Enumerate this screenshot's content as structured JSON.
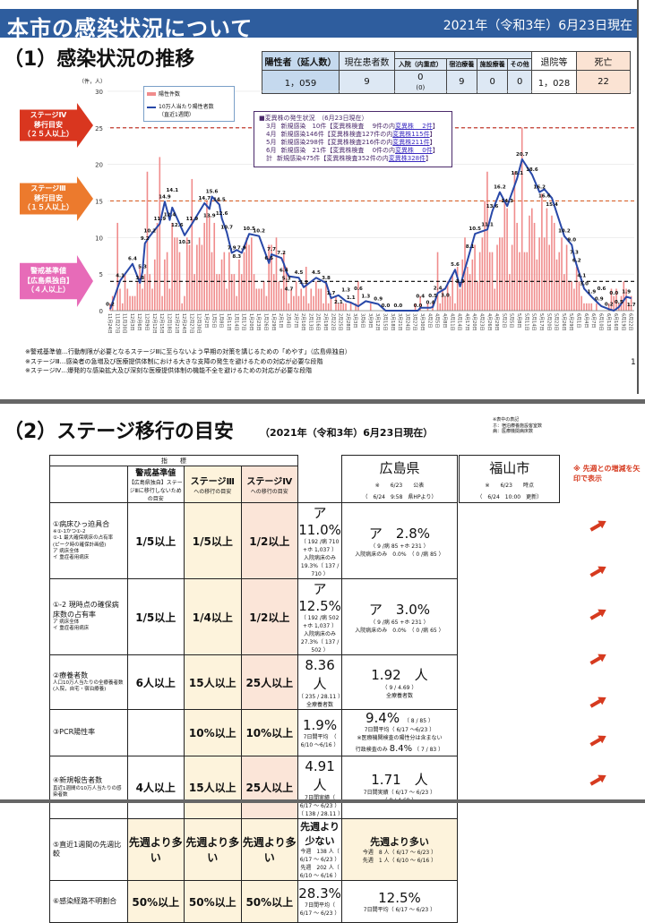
{
  "header": {
    "title": "本市の感染状況について",
    "date": "2021年（令和3年）6月23日現在"
  },
  "section1": {
    "title": "（1）感染状況の推移"
  },
  "summary": {
    "headers": {
      "positive": "陽性者（延人数）",
      "current": "現在患者数",
      "hospital": "入院（内重症）",
      "hotel": "宿泊療養",
      "facility": "施設療養",
      "other": "その他",
      "discharged": "退院等",
      "deaths": "死亡"
    },
    "values": {
      "positive": "1，059",
      "current": "9",
      "hospital": "0",
      "hospital_severe": "(0)",
      "hotel": "9",
      "facility": "0",
      "other": "0",
      "discharged": "1，028",
      "deaths": "22"
    }
  },
  "stages": {
    "s4": [
      "ステージⅣ",
      "移行目安",
      "（２５人以上）"
    ],
    "s3": [
      "ステージⅢ",
      "移行目安",
      "（１５人以上）"
    ],
    "alert": [
      "警戒基準値",
      "【広島県独自】",
      "（４人以上）"
    ]
  },
  "legend": {
    "unit": "（件，人）",
    "bars": "陽性件数",
    "line": "10万人当たり陽性者数",
    "line_sub": "（直近1週間）"
  },
  "variant": {
    "title": "■変異株の発生状況　（6月23日現在）",
    "rows": [
      [
        "3月",
        "新規感染　10件【変異株検査　 9件の内",
        "変異株　 2件",
        "】"
      ],
      [
        "4月",
        "新規感染146件【変異株検査127件の内",
        "変異株115件",
        "】"
      ],
      [
        "5月",
        "新規感染298件【変異株検査216件の内",
        "変異株211件",
        "】"
      ],
      [
        "6月",
        "新規感染　21件【変異株検査　 0件の内",
        "変異株　 0件",
        "】"
      ],
      [
        "計",
        "新規感染475件【変異株検査352件の内",
        "変異株328件",
        "】"
      ]
    ]
  },
  "chart_data": {
    "type": "bar+line",
    "ylabel": "（件，人）",
    "ylim": [
      0,
      30
    ],
    "yticks": [
      0,
      5,
      10,
      15,
      20,
      25,
      30
    ],
    "thresholds": [
      {
        "value": 25,
        "color": "#c0392b"
      },
      {
        "value": 15,
        "color": "#d9622b"
      },
      {
        "value": 4,
        "color": "#000000"
      }
    ],
    "colors": {
      "bar": "#f08c8c",
      "line": "#2848a8"
    },
    "xtick_labels": [
      "11月24日",
      "11月27日",
      "11月30日",
      "12月3日",
      "12月6日",
      "12月9日",
      "12月12日",
      "12月15日",
      "12月18日",
      "12月21日",
      "12月24日",
      "12月27日",
      "12月30日",
      "1月2日",
      "1月5日",
      "1月8日",
      "1月11日",
      "1月14日",
      "1月17日",
      "1月20日",
      "1月23日",
      "1月26日",
      "1月29日",
      "2月1日",
      "2月4日",
      "2月7日",
      "2月10日",
      "2月13日",
      "2月16日",
      "2月19日",
      "2月22日",
      "2月25日",
      "2月28日",
      "3月3日",
      "3月6日",
      "3月9日",
      "3月12日",
      "3月15日",
      "3月18日",
      "3月21日",
      "3月24日",
      "3月27日",
      "3月30日",
      "4月2日",
      "4月5日",
      "4月8日",
      "4月11日",
      "4月14日",
      "4月17日",
      "4月20日",
      "4月23日",
      "4月26日",
      "4月29日",
      "5月2日",
      "5月5日",
      "5月8日",
      "5月11日",
      "5月14日",
      "5月17日",
      "5月20日",
      "5月23日",
      "5月26日",
      "5月29日",
      "6月1日",
      "6月4日",
      "6月7日",
      "6月10日",
      "6月13日",
      "6月16日",
      "6月19日",
      "6月22日"
    ],
    "daily_cases": [
      1,
      2,
      0,
      12,
      3,
      1,
      5,
      3,
      2,
      2,
      2,
      4,
      6,
      3,
      5,
      19,
      5,
      3,
      7,
      12,
      21,
      2,
      7,
      8,
      3,
      12,
      10,
      10,
      8,
      1,
      2,
      10,
      9,
      18,
      5,
      9,
      10,
      9,
      12,
      15,
      13,
      8,
      12,
      5,
      5,
      7,
      8,
      3,
      8,
      5,
      5,
      2,
      7,
      5,
      8,
      10,
      9,
      10,
      5,
      3,
      3,
      3,
      4,
      2,
      9,
      9,
      5,
      10,
      4,
      3,
      8,
      6,
      1,
      3,
      2,
      4,
      2,
      3,
      2,
      6,
      1,
      3,
      2,
      4,
      3,
      3,
      1,
      4,
      1,
      2,
      0,
      2,
      1,
      1,
      1,
      1,
      0,
      1,
      0,
      1,
      4,
      0,
      0,
      0,
      0,
      1,
      0,
      0,
      0,
      0,
      0,
      0,
      0,
      0,
      0,
      0,
      0,
      0,
      0,
      0,
      0,
      0,
      0,
      1,
      0,
      2,
      0,
      0,
      1,
      0,
      1,
      0,
      8,
      1,
      3,
      2,
      4,
      2,
      5,
      1,
      6,
      3,
      7,
      10,
      6,
      5,
      7,
      9,
      4,
      8,
      10,
      15,
      19,
      8,
      8,
      3,
      9,
      10,
      10,
      15,
      14,
      5,
      9,
      19,
      12,
      8,
      25,
      8,
      8,
      13,
      14,
      12,
      7,
      10,
      16,
      10,
      14,
      9,
      13,
      12,
      7,
      8,
      10,
      5,
      9,
      4,
      4,
      3,
      6,
      4,
      2,
      1,
      1,
      1,
      1,
      0,
      1,
      0,
      0,
      0,
      0,
      1,
      3,
      2,
      3,
      1,
      2,
      4,
      3,
      1,
      2
    ],
    "per100k_line": [
      [
        0,
        0.2
      ],
      [
        4,
        4.1
      ],
      [
        9,
        6.4
      ],
      [
        12,
        3.8
      ],
      [
        13,
        5.3
      ],
      [
        14,
        9.2
      ],
      [
        16,
        10.2
      ],
      [
        20,
        11.9
      ],
      [
        22,
        14.9
      ],
      [
        24,
        12.4
      ],
      [
        25,
        14.1
      ],
      [
        27,
        12.6
      ],
      [
        30,
        10.3
      ],
      [
        33,
        11.9
      ],
      [
        38,
        14.7
      ],
      [
        40,
        13.9
      ],
      [
        41,
        15.6
      ],
      [
        44,
        14.5
      ],
      [
        45,
        12.6
      ],
      [
        47,
        10.7
      ],
      [
        49,
        7.9
      ],
      [
        51,
        8.3
      ],
      [
        53,
        7.9
      ],
      [
        56,
        10.5
      ],
      [
        60,
        10.2
      ],
      [
        64,
        6.5
      ],
      [
        65,
        7.7
      ],
      [
        69,
        7.2
      ],
      [
        70,
        6.4
      ],
      [
        71,
        5.3
      ],
      [
        72,
        4.7
      ],
      [
        76,
        4.5
      ],
      [
        78,
        3.2
      ],
      [
        83,
        4.5
      ],
      [
        87,
        3.8
      ],
      [
        89,
        1.7
      ],
      [
        92,
        2.1
      ],
      [
        95,
        1.3
      ],
      [
        97,
        1.1
      ],
      [
        100,
        0.6
      ],
      [
        103,
        1.3
      ],
      [
        108,
        0.9
      ],
      [
        111,
        0.0
      ],
      [
        116,
        0.0
      ],
      [
        124,
        0.0
      ],
      [
        125,
        0.4
      ],
      [
        129,
        0.4
      ],
      [
        130,
        0.5
      ],
      [
        132,
        2.4
      ],
      [
        135,
        3.0
      ],
      [
        139,
        5.6
      ],
      [
        141,
        3.3
      ],
      [
        145,
        8.1
      ],
      [
        147,
        10.5
      ],
      [
        152,
        11.1
      ],
      [
        154,
        13.6
      ],
      [
        157,
        16.2
      ],
      [
        160,
        14.3
      ],
      [
        164,
        18.1
      ],
      [
        166,
        20.7
      ],
      [
        170,
        18.6
      ],
      [
        173,
        16.2
      ],
      [
        175,
        16.6
      ],
      [
        178,
        15.4
      ],
      [
        183,
        10.2
      ],
      [
        186,
        9.0
      ],
      [
        187,
        7.3
      ],
      [
        188,
        6.2
      ],
      [
        190,
        4.1
      ],
      [
        191,
        3.0
      ],
      [
        194,
        1.9
      ],
      [
        197,
        0.9
      ],
      [
        198,
        0.6
      ],
      [
        201,
        0.2
      ],
      [
        203,
        0.0
      ],
      [
        205,
        0.5
      ],
      [
        208,
        1.9
      ],
      [
        210,
        1.7
      ]
    ]
  },
  "notes": [
    "※警戒基準値…行動制限が必要となるステージⅢに至らないよう早期の対策を講じるための「めやす」（広島県独自）",
    "※ステージⅢ…感染者の急増及び医療提供体制における大きな支障の発生を避けるための対応が必要な段階",
    "※ステージⅣ…爆発的な感染拡大及び深刻な医療提供体制の機能不全を避けるための対応が必要な段階"
  ],
  "page_number": "1",
  "section2": {
    "title": "（2）ステージ移行の目安",
    "date": "（2021年（令和3年）6月23日現在）",
    "legend_note": [
      "※表中の表記",
      "ホ：宿泊療養施設客室数",
      "病：医療機関病床数"
    ],
    "side_note": "※ 先週との増減を矢印で表示"
  },
  "table": {
    "indicator_header": "指　　標",
    "col_alert": {
      "title": "警戒基準値",
      "sub": "【広島県独自】ステージⅢに移行しないための目安"
    },
    "col_s3": {
      "title": "ステージⅢ",
      "sub": "への移行の目安"
    },
    "col_s4": {
      "title": "ステージⅣ",
      "sub": "への移行の目安"
    },
    "hiroshima": {
      "title": "広島県",
      "sub1": "※　　6/23　　公表",
      "sub2": "（　6/24　9:58　県HPより）"
    },
    "fukuyama": {
      "title": "福山市",
      "sub1": "※　　6/23　　時点",
      "sub2": "（　6/24　10:00　更新）"
    },
    "rows": [
      {
        "label": "①病床ひっ迫具合",
        "label_sub": "※①-1かつ①-2\n①-1 最大確保病床の占有率\n(ピーク時の確保計画値)\nア 病床全体\nイ 重症者用病床",
        "alert": "1/5以上",
        "s3": "1/5以上",
        "s4": "1/2以上",
        "hiro": {
          "main": "ア　11.0%",
          "l1": "（ 192 /病 710 +ホ 1,037 ）",
          "l2": "入院病床のみ 19.3%（ 137 / 710 ）"
        },
        "fuku": {
          "main": "ア　2.8%",
          "l1": "（ 9 /病 85 +ホ 231 ）",
          "l2": "入院病床のみ　0.0%　（ 0 /病 85 ）"
        }
      },
      {
        "label": "①-2 現時点の確保病床数の占有率",
        "label_sub": "ア 病床全体\nイ 重症者用病床",
        "alert": "1/5以上",
        "s3": "1/4以上",
        "s4": "1/2以上",
        "hiro": {
          "main": "ア　12.5%",
          "l1": "（ 192 /病 502 +ホ 1,037 ）",
          "l2": "入院病床のみ 27.3%（ 137 / 502 ）"
        },
        "fuku": {
          "main": "ア　3.0%",
          "l1": "（ 9 /病 65 +ホ 231 ）",
          "l2": "入院病床のみ　0.0%　（ 0 /病 65 ）"
        }
      },
      {
        "label": "②療養者数",
        "label_sub": "人口10万人当たりの全療養者数(入院，自宅・宿泊療養)",
        "alert": "6人以上",
        "s3": "15人以上",
        "s4": "25人以上",
        "hiro": {
          "main": "8.36　人",
          "l1": "（ 235 / 28.11 ）",
          "l2": "全療養者数"
        },
        "fuku": {
          "main": "1.92　人",
          "l1": "（ 9 / 4.69 ）",
          "l2": "全療養者数"
        }
      },
      {
        "label": "③PCR陽性率",
        "label_sub": "",
        "alert": "",
        "s3": "10%以上",
        "s4": "10%以上",
        "hiro": {
          "main": "1.9%",
          "l1": "7日間平均　（ 6/10 ～6/16 ）",
          "l2": ""
        },
        "fuku": {
          "main": "9.4%",
          "l0": "（ 8 / 85 ）",
          "l1": "7日間平均（ 6/17 ～6/23 ）",
          "l2": "※医療機関検査の陽性分は含まない",
          "l3a": "行政検査のみ",
          "l3b": "8.4%",
          "l3c": "（ 7 / 83 ）"
        }
      },
      {
        "label": "④新規報告者数",
        "label_sub": "直近1週間の10万人当たりの感染者数",
        "alert": "4人以上",
        "s3": "15人以上",
        "s4": "25人以上",
        "hiro": {
          "main": "4.91　人",
          "l1": "7日間実績（ 6/17 ～ 6/23 ）",
          "l2": "（ 138 / 28.11 ）"
        },
        "fuku": {
          "main": "1.71　人",
          "l1": "7日間実績（ 6/17 ～ 6/23 ）",
          "l2": "（ 8 / 4.69 ）"
        }
      },
      {
        "label": "⑤直近1週間の先週比較",
        "label_sub": "",
        "alert": "先週より多い",
        "s3": "先週より多い",
        "s4": "先週より多い",
        "hiro": {
          "main": "先週より少ない",
          "l1": "今週　138 人（ 6/17 ～ 6/23 ）",
          "l2": "先週　202 人（ 6/10 ～ 6/16 ）"
        },
        "fuku": {
          "main": "先週より多い",
          "l1": "今週　8 人（ 6/17 ～ 6/23 ）",
          "l2": "先週　1 人（ 6/10 ～ 6/16 ）"
        }
      },
      {
        "label": "⑥感染経路不明割合",
        "label_sub": "",
        "alert": "50%以上",
        "s3": "50%以上",
        "s4": "50%以上",
        "hiro": {
          "main": "28.3%",
          "l1": "7日間平均（ 6/17 ～ 6/23 ）",
          "l2": ""
        },
        "fuku": {
          "main": "12.5%",
          "l1": "7日間平均（ 6/17 ～ 6/23 ）",
          "l2": ""
        }
      }
    ],
    "trend_arrows": [
      "up",
      "up",
      "up",
      "up",
      "up",
      "up",
      "up"
    ]
  }
}
